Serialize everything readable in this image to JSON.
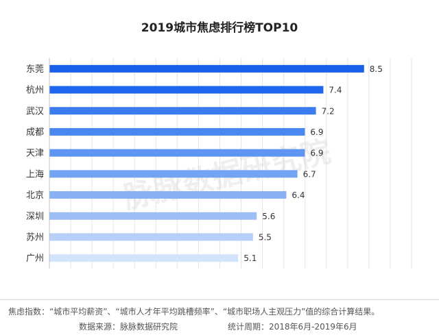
{
  "chart_data": {
    "type": "bar",
    "orientation": "horizontal",
    "title": "2019城市焦虑排行榜TOP10",
    "categories": [
      "东莞",
      "杭州",
      "武汉",
      "成都",
      "天津",
      "上海",
      "北京",
      "深圳",
      "苏州",
      "广州"
    ],
    "values": [
      8.5,
      7.4,
      7.2,
      6.9,
      6.9,
      6.7,
      6.4,
      5.6,
      5.5,
      5.1
    ],
    "colors": [
      "#1a5fe8",
      "#1e67ee",
      "#3b7df0",
      "#4a87f0",
      "#5f95f2",
      "#73a3f3",
      "#88b1f5",
      "#9bbef6",
      "#b6d0f8",
      "#d3e3fb"
    ],
    "xlim": [
      0,
      9
    ],
    "grid": true,
    "legend": "none"
  },
  "watermark": "脉脉数据研究院",
  "footer": {
    "note": "焦虑指数：“城市平均薪资”、“城市人才年平均跳槽频率”、“城市职场人主观压力”值的综合计算结果。",
    "source": "数据来源：脉脉数据研究院",
    "period": "统计周期：2018年6月-2019年6月"
  }
}
